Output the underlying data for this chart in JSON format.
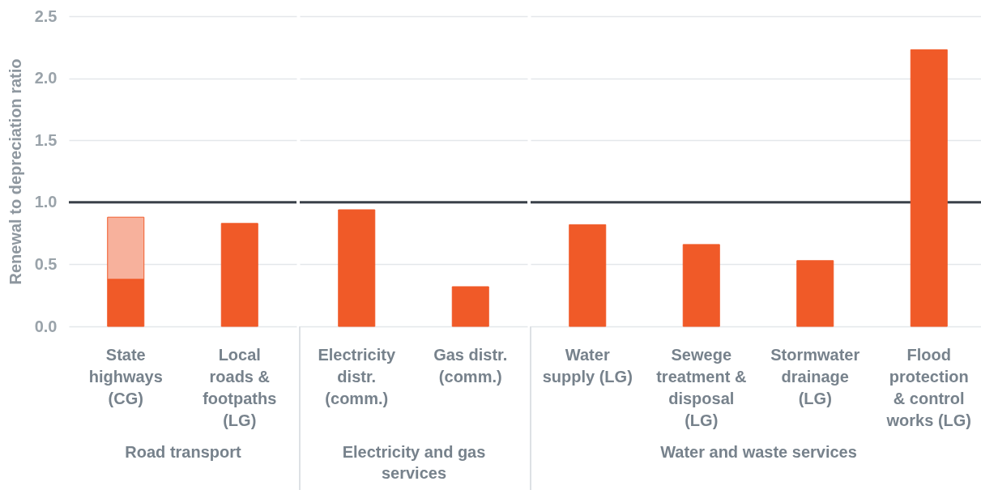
{
  "chart_data": [
    {
      "type": "bar",
      "ylabel": "Renewal to depreciation ratio",
      "xlabel": "Road transport",
      "categories": [
        "State highways (CG)",
        "Local roads & footpaths (LG)"
      ],
      "stacked": true,
      "series": [
        {
          "color": "#f05a28",
          "values": [
            0.38,
            0.83
          ]
        },
        {
          "color": "#f7b19c",
          "values": [
            0.5,
            null
          ]
        }
      ],
      "ylim": [
        0,
        2.5
      ],
      "yticks": [
        {
          "value": 0,
          "label": "0.0"
        },
        0.5,
        {
          "value": 1,
          "label": "1.0"
        },
        1.5,
        {
          "value": 2,
          "label": "2.0"
        },
        2.5
      ],
      "grid": "y",
      "ref_lines": [
        {
          "axis": "y",
          "value": 1,
          "color": "#3a4149"
        }
      ]
    },
    {
      "type": "bar",
      "xlabel": "Electricity and gas services",
      "categories": [
        "Electricity distr. (comm.)",
        "Gas distr. (comm.)"
      ],
      "values": [
        0.94,
        0.32
      ],
      "color": "#f05a28",
      "ylim": [
        0,
        2.5
      ],
      "yticks": [
        0,
        0.5,
        1,
        1.5,
        2,
        2.5
      ],
      "grid": "y",
      "tick_labels": "x",
      "ref_lines": [
        {
          "axis": "y",
          "value": 1,
          "color": "#3a4149"
        }
      ]
    },
    {
      "type": "bar",
      "xlabel": "Water and waste services",
      "categories": [
        "Water supply (LG)",
        "Sewege treatment & disposal (LG)",
        "Stormwater drainage (LG)",
        "Flood protection & control works (LG)"
      ],
      "values": [
        0.82,
        0.66,
        0.53,
        2.23
      ],
      "color": "#f05a28",
      "ylim": [
        0,
        2.5
      ],
      "yticks": [
        0,
        0.5,
        1,
        1.5,
        2,
        2.5
      ],
      "grid": "y",
      "tick_labels": "x",
      "ref_lines": [
        {
          "axis": "y",
          "value": 1,
          "color": "#3a4149"
        }
      ]
    }
  ]
}
